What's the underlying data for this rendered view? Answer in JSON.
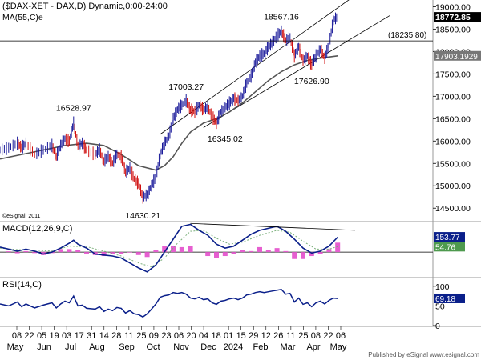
{
  "chart_data": {
    "type": "line",
    "title": "($DAX-XET - DAX,D) Dynamic,0:00-24:00",
    "ma_label": "MA(55,C)e",
    "watermark": "©eSignal, 2011",
    "publisher": "Published by eSignal  www.esignal.com",
    "price_panel": {
      "ylim": [
        14200,
        19150
      ],
      "ticks": [
        14500,
        15000,
        15500,
        16000,
        16500,
        17000,
        17500,
        18000,
        18500,
        19000
      ],
      "tick_labels": [
        "14500.00",
        "15000.00",
        "15500.00",
        "16000.00",
        "16500.00",
        "17000.00",
        "17500.00",
        "18000.00",
        "18500.00",
        "19000.00"
      ],
      "last_price": 18772.85,
      "last_price_label": "18772.85",
      "ma_last": 17903.1929,
      "ma_last_label": "17903.1929",
      "horizontal_level": 18235.8,
      "horizontal_level_label": "(18235.80)",
      "annotations": [
        {
          "x": 0.17,
          "value": 16528.97,
          "label": "16528.97"
        },
        {
          "x": 0.33,
          "value": 14630.21,
          "label": "14630.21"
        },
        {
          "x": 0.43,
          "value": 17003.27,
          "label": "17003.27"
        },
        {
          "x": 0.52,
          "value": 16345.02,
          "label": "16345.02"
        },
        {
          "x": 0.65,
          "value": 18567.16,
          "label": "18567.16"
        },
        {
          "x": 0.72,
          "value": 17626.9,
          "label": "17626.90"
        }
      ],
      "price_path": [
        [
          0.0,
          15800
        ],
        [
          0.02,
          15850
        ],
        [
          0.04,
          15950
        ],
        [
          0.05,
          15850
        ],
        [
          0.06,
          15950
        ],
        [
          0.08,
          15700
        ],
        [
          0.1,
          15800
        ],
        [
          0.12,
          15900
        ],
        [
          0.13,
          15650
        ],
        [
          0.14,
          15900
        ],
        [
          0.15,
          16050
        ],
        [
          0.16,
          16000
        ],
        [
          0.17,
          16400
        ],
        [
          0.18,
          15900
        ],
        [
          0.19,
          15950
        ],
        [
          0.2,
          15800
        ],
        [
          0.22,
          15700
        ],
        [
          0.23,
          15800
        ],
        [
          0.24,
          15550
        ],
        [
          0.25,
          15650
        ],
        [
          0.26,
          15500
        ],
        [
          0.27,
          15700
        ],
        [
          0.28,
          15650
        ],
        [
          0.29,
          15300
        ],
        [
          0.3,
          15400
        ],
        [
          0.31,
          15150
        ],
        [
          0.32,
          15050
        ],
        [
          0.33,
          14750
        ],
        [
          0.34,
          14800
        ],
        [
          0.35,
          15000
        ],
        [
          0.36,
          15200
        ],
        [
          0.37,
          15700
        ],
        [
          0.38,
          15950
        ],
        [
          0.39,
          16100
        ],
        [
          0.4,
          16500
        ],
        [
          0.41,
          16700
        ],
        [
          0.42,
          16800
        ],
        [
          0.43,
          16900
        ],
        [
          0.44,
          16700
        ],
        [
          0.45,
          16650
        ],
        [
          0.46,
          16800
        ],
        [
          0.47,
          16700
        ],
        [
          0.48,
          16750
        ],
        [
          0.49,
          16550
        ],
        [
          0.5,
          16400
        ],
        [
          0.51,
          16650
        ],
        [
          0.52,
          16750
        ],
        [
          0.53,
          16850
        ],
        [
          0.54,
          16950
        ],
        [
          0.55,
          16900
        ],
        [
          0.56,
          17000
        ],
        [
          0.57,
          17300
        ],
        [
          0.58,
          17450
        ],
        [
          0.59,
          17750
        ],
        [
          0.6,
          17900
        ],
        [
          0.61,
          17950
        ],
        [
          0.62,
          18100
        ],
        [
          0.63,
          18200
        ],
        [
          0.64,
          18350
        ],
        [
          0.65,
          18450
        ],
        [
          0.66,
          18250
        ],
        [
          0.67,
          18300
        ],
        [
          0.68,
          17900
        ],
        [
          0.69,
          18100
        ],
        [
          0.7,
          17800
        ],
        [
          0.71,
          17900
        ],
        [
          0.72,
          17700
        ],
        [
          0.73,
          17900
        ],
        [
          0.74,
          18050
        ],
        [
          0.75,
          17850
        ],
        [
          0.76,
          18150
        ],
        [
          0.77,
          18700
        ],
        [
          0.78,
          18780
        ]
      ],
      "ma_path": [
        [
          0.0,
          15600
        ],
        [
          0.05,
          15700
        ],
        [
          0.1,
          15800
        ],
        [
          0.15,
          15900
        ],
        [
          0.2,
          15950
        ],
        [
          0.24,
          15900
        ],
        [
          0.28,
          15700
        ],
        [
          0.32,
          15450
        ],
        [
          0.36,
          15350
        ],
        [
          0.38,
          15450
        ],
        [
          0.4,
          15650
        ],
        [
          0.42,
          15950
        ],
        [
          0.44,
          16200
        ],
        [
          0.47,
          16400
        ],
        [
          0.5,
          16500
        ],
        [
          0.53,
          16650
        ],
        [
          0.56,
          16850
        ],
        [
          0.59,
          17100
        ],
        [
          0.62,
          17350
        ],
        [
          0.65,
          17550
        ],
        [
          0.68,
          17700
        ],
        [
          0.71,
          17800
        ],
        [
          0.74,
          17850
        ],
        [
          0.78,
          17903
        ]
      ],
      "channel_upper": [
        [
          0.37,
          16150
        ],
        [
          0.82,
          19250
        ]
      ],
      "channel_lower": [
        [
          0.47,
          16300
        ],
        [
          0.9,
          18800
        ]
      ]
    },
    "macd_panel": {
      "label": "MACD(12,26,9,C)",
      "ylim": [
        -250,
        300
      ],
      "macd_last": 153.77,
      "macd_last_label": "153.77",
      "signal_last": 54.76,
      "signal_last_label": "54.76",
      "macd_path": [
        [
          0.0,
          50
        ],
        [
          0.02,
          30
        ],
        [
          0.04,
          10
        ],
        [
          0.06,
          30
        ],
        [
          0.08,
          10
        ],
        [
          0.1,
          -20
        ],
        [
          0.12,
          0
        ],
        [
          0.14,
          40
        ],
        [
          0.16,
          90
        ],
        [
          0.17,
          120
        ],
        [
          0.18,
          80
        ],
        [
          0.2,
          40
        ],
        [
          0.22,
          -20
        ],
        [
          0.24,
          -30
        ],
        [
          0.26,
          -40
        ],
        [
          0.28,
          -60
        ],
        [
          0.3,
          -110
        ],
        [
          0.32,
          -160
        ],
        [
          0.34,
          -200
        ],
        [
          0.36,
          -130
        ],
        [
          0.38,
          0
        ],
        [
          0.4,
          130
        ],
        [
          0.42,
          260
        ],
        [
          0.44,
          280
        ],
        [
          0.46,
          220
        ],
        [
          0.48,
          170
        ],
        [
          0.5,
          80
        ],
        [
          0.52,
          40
        ],
        [
          0.54,
          60
        ],
        [
          0.56,
          120
        ],
        [
          0.58,
          180
        ],
        [
          0.6,
          220
        ],
        [
          0.62,
          240
        ],
        [
          0.64,
          260
        ],
        [
          0.66,
          210
        ],
        [
          0.68,
          130
        ],
        [
          0.7,
          40
        ],
        [
          0.72,
          -10
        ],
        [
          0.74,
          10
        ],
        [
          0.76,
          60
        ],
        [
          0.78,
          150
        ]
      ],
      "signal_path": [
        [
          0.0,
          40
        ],
        [
          0.04,
          25
        ],
        [
          0.08,
          20
        ],
        [
          0.12,
          10
        ],
        [
          0.16,
          60
        ],
        [
          0.2,
          55
        ],
        [
          0.24,
          10
        ],
        [
          0.28,
          -40
        ],
        [
          0.32,
          -110
        ],
        [
          0.35,
          -150
        ],
        [
          0.38,
          -60
        ],
        [
          0.41,
          90
        ],
        [
          0.44,
          210
        ],
        [
          0.47,
          220
        ],
        [
          0.5,
          140
        ],
        [
          0.53,
          80
        ],
        [
          0.56,
          100
        ],
        [
          0.6,
          170
        ],
        [
          0.64,
          220
        ],
        [
          0.67,
          200
        ],
        [
          0.7,
          110
        ],
        [
          0.73,
          30
        ],
        [
          0.76,
          30
        ],
        [
          0.78,
          55
        ]
      ],
      "divergence_line": [
        [
          0.44,
          290
        ],
        [
          0.82,
          220
        ]
      ],
      "histogram": [
        [
          0.02,
          8
        ],
        [
          0.04,
          -12
        ],
        [
          0.06,
          10
        ],
        [
          0.08,
          -10
        ],
        [
          0.1,
          -30
        ],
        [
          0.12,
          -10
        ],
        [
          0.14,
          30
        ],
        [
          0.16,
          30
        ],
        [
          0.18,
          25
        ],
        [
          0.2,
          -15
        ],
        [
          0.22,
          -30
        ],
        [
          0.24,
          -40
        ],
        [
          0.26,
          -20
        ],
        [
          0.28,
          -20
        ],
        [
          0.3,
          -5
        ],
        [
          0.32,
          -30
        ],
        [
          0.34,
          -50
        ],
        [
          0.36,
          20
        ],
        [
          0.38,
          60
        ],
        [
          0.4,
          60
        ],
        [
          0.42,
          50
        ],
        [
          0.44,
          60
        ],
        [
          0.46,
          0
        ],
        [
          0.48,
          -40
        ],
        [
          0.5,
          -60
        ],
        [
          0.52,
          -40
        ],
        [
          0.54,
          -20
        ],
        [
          0.56,
          20
        ],
        [
          0.58,
          10
        ],
        [
          0.6,
          50
        ],
        [
          0.62,
          25
        ],
        [
          0.64,
          40
        ],
        [
          0.66,
          10
        ],
        [
          0.68,
          -70
        ],
        [
          0.7,
          -70
        ],
        [
          0.72,
          -40
        ],
        [
          0.74,
          -20
        ],
        [
          0.76,
          30
        ],
        [
          0.78,
          95
        ]
      ]
    },
    "rsi_panel": {
      "label": "RSI(14,C)",
      "ylim": [
        0,
        120
      ],
      "ticks": [
        0,
        50,
        100
      ],
      "tick_labels": [
        "0",
        "50",
        "100"
      ],
      "rsi_last": 69.18,
      "rsi_last_label": "69.18",
      "rsi_path": [
        [
          0.0,
          55
        ],
        [
          0.02,
          50
        ],
        [
          0.04,
          60
        ],
        [
          0.05,
          48
        ],
        [
          0.06,
          55
        ],
        [
          0.08,
          45
        ],
        [
          0.1,
          52
        ],
        [
          0.12,
          58
        ],
        [
          0.13,
          45
        ],
        [
          0.14,
          55
        ],
        [
          0.15,
          62
        ],
        [
          0.16,
          58
        ],
        [
          0.17,
          75
        ],
        [
          0.18,
          50
        ],
        [
          0.19,
          52
        ],
        [
          0.2,
          44
        ],
        [
          0.22,
          42
        ],
        [
          0.23,
          48
        ],
        [
          0.24,
          36
        ],
        [
          0.25,
          42
        ],
        [
          0.26,
          38
        ],
        [
          0.27,
          46
        ],
        [
          0.28,
          44
        ],
        [
          0.29,
          32
        ],
        [
          0.3,
          38
        ],
        [
          0.31,
          30
        ],
        [
          0.32,
          28
        ],
        [
          0.33,
          22
        ],
        [
          0.34,
          30
        ],
        [
          0.35,
          42
        ],
        [
          0.36,
          55
        ],
        [
          0.37,
          72
        ],
        [
          0.38,
          76
        ],
        [
          0.39,
          78
        ],
        [
          0.4,
          84
        ],
        [
          0.41,
          82
        ],
        [
          0.42,
          84
        ],
        [
          0.43,
          80
        ],
        [
          0.44,
          70
        ],
        [
          0.45,
          68
        ],
        [
          0.46,
          72
        ],
        [
          0.47,
          66
        ],
        [
          0.48,
          68
        ],
        [
          0.49,
          58
        ],
        [
          0.5,
          54
        ],
        [
          0.51,
          62
        ],
        [
          0.52,
          64
        ],
        [
          0.53,
          68
        ],
        [
          0.54,
          70
        ],
        [
          0.55,
          66
        ],
        [
          0.56,
          70
        ],
        [
          0.57,
          78
        ],
        [
          0.58,
          80
        ],
        [
          0.59,
          84
        ],
        [
          0.6,
          86
        ],
        [
          0.61,
          84
        ],
        [
          0.62,
          86
        ],
        [
          0.63,
          88
        ],
        [
          0.64,
          90
        ],
        [
          0.65,
          92
        ],
        [
          0.66,
          80
        ],
        [
          0.67,
          82
        ],
        [
          0.68,
          60
        ],
        [
          0.69,
          70
        ],
        [
          0.7,
          54
        ],
        [
          0.71,
          58
        ],
        [
          0.72,
          48
        ],
        [
          0.73,
          58
        ],
        [
          0.74,
          62
        ],
        [
          0.75,
          55
        ],
        [
          0.76,
          64
        ],
        [
          0.77,
          70
        ],
        [
          0.78,
          69
        ]
      ]
    },
    "x_axis": {
      "day_labels": [
        "08",
        "22",
        "05",
        "19",
        "03",
        "17",
        "31",
        "14",
        "28",
        "11",
        "25",
        "09",
        "23",
        "06",
        "20",
        "04",
        "18",
        "01",
        "15",
        "29",
        "12",
        "26",
        "11",
        "25",
        "08",
        "22",
        "06"
      ],
      "month_labels": [
        "May",
        "Jun",
        "Jul",
        "Aug",
        "Sep",
        "Oct",
        "Nov",
        "Dec",
        "2024",
        "Feb",
        "Mar",
        "Apr",
        "May"
      ]
    }
  }
}
